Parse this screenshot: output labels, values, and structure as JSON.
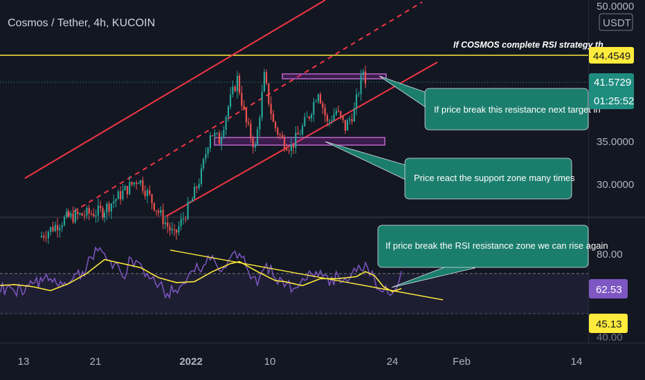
{
  "chart_title": "Cosmos / Tether, 4h, KUCOIN",
  "currency_badge": "USDT",
  "top_note": "If COSMOS complete RSI strategy th",
  "colors": {
    "background": "#131722",
    "up_candle": "#26a69a",
    "down_candle": "#ef5350",
    "channel": "#f23645",
    "horizontal_level": "#ffeb3b",
    "zone": "#9c27b0",
    "rsi": "#7e57c2",
    "rsi_ma": "#ffeb3b",
    "callout": "#1b7e6d"
  },
  "annotations": {
    "resistance_callout": "If price break this resistance next target in",
    "support_callout": "Price react the support zone many times",
    "rsi_callout": "If price break the RSI resistance zone we can rise again"
  },
  "price_badges": {
    "level": "44.4549",
    "last_price": "41.5729",
    "countdown": "01:25:52"
  },
  "rsi_badges": {
    "rsi_value": "62.53",
    "rsi_ma_value": "45.13"
  },
  "chart_data": [
    {
      "type": "candlestick",
      "title": "Cosmos / Tether, 4h, KUCOIN",
      "y_axis_ticks": [
        "50.0000",
        "35.0000",
        "30.0000"
      ],
      "x_axis_ticks": [
        "13",
        "21",
        "2022",
        "10",
        "24",
        "Feb",
        "14"
      ],
      "ylim": [
        23.9,
        51
      ],
      "horizontal_level": 44.4549,
      "last_price": 41.5729,
      "resistance_zone": [
        41.6,
        42.5
      ],
      "support_zone": [
        34.7,
        35.7
      ],
      "close_path": [
        {
          "x": "Dec 15",
          "close": 24.5
        },
        {
          "x": "Dec 18",
          "close": 26.8
        },
        {
          "x": "Dec 22",
          "close": 27.6
        },
        {
          "x": "Dec 26",
          "close": 31.5
        },
        {
          "x": "Dec 28",
          "close": 27.9
        },
        {
          "x": "Dec 30",
          "close": 24.6
        },
        {
          "x": "Jan 1",
          "close": 29.0
        },
        {
          "x": "Jan 2",
          "close": 32.0
        },
        {
          "x": "Jan 3",
          "close": 37.0
        },
        {
          "x": "Jan 4",
          "close": 36.0
        },
        {
          "x": "Jan 5",
          "close": 40.0
        },
        {
          "x": "Jan 6",
          "close": 43.3
        },
        {
          "x": "Jan 7",
          "close": 38.0
        },
        {
          "x": "Jan 8",
          "close": 35.0
        },
        {
          "x": "Jan 9",
          "close": 43.5
        },
        {
          "x": "Jan 10",
          "close": 38.0
        },
        {
          "x": "Jan 11",
          "close": 36.0
        },
        {
          "x": "Jan 12",
          "close": 35.2
        },
        {
          "x": "Jan 13",
          "close": 37.0
        },
        {
          "x": "Jan 14",
          "close": 39.0
        },
        {
          "x": "Jan 15",
          "close": 42.0
        },
        {
          "x": "Jan 16",
          "close": 38.0
        },
        {
          "x": "Jan 17",
          "close": 39.5
        },
        {
          "x": "Jan 18",
          "close": 37.5
        },
        {
          "x": "Jan 19",
          "close": 39.5
        },
        {
          "x": "Jan 20",
          "close": 44.3
        },
        {
          "x": "Jan 21",
          "close": 40.0
        },
        {
          "x": "Jan 22",
          "close": 36.0
        },
        {
          "x": "Jan 23",
          "close": 37.5
        },
        {
          "x": "Jan 24",
          "close": 41.57
        }
      ],
      "channel": {
        "lower": [
          {
            "x": "Jan 1",
            "y": 24.5
          },
          {
            "x": "Feb 2",
            "y": 44.4
          }
        ],
        "upper": [
          {
            "x": "Dec 10",
            "y": 31.5
          },
          {
            "x": "Jan 20",
            "y": 52.0
          }
        ],
        "mid_dashed": [
          {
            "x": "Dec 17",
            "y": 24.5
          },
          {
            "x": "Jan 27",
            "y": 51.0
          }
        ]
      }
    },
    {
      "type": "line",
      "title": "RSI",
      "y_axis_ticks": [
        "80.00",
        "40.00"
      ],
      "ylim": [
        38,
        96
      ],
      "bands": [
        70,
        50
      ],
      "series": [
        {
          "name": "",
          "values": [
            {
              "x": "Dec 10",
              "y": 46
            },
            {
              "x": "Dec 12",
              "y": 42
            },
            {
              "x": "Dec 14",
              "y": 50
            },
            {
              "x": "Dec 16",
              "y": 55
            },
            {
              "x": "Dec 18",
              "y": 50
            },
            {
              "x": "Dec 20",
              "y": 66
            },
            {
              "x": "Dec 21",
              "y": 86
            },
            {
              "x": "Dec 22",
              "y": 80
            },
            {
              "x": "Dec 24",
              "y": 57
            },
            {
              "x": "Dec 25",
              "y": 75
            },
            {
              "x": "Dec 26",
              "y": 70
            },
            {
              "x": "Dec 27",
              "y": 55
            },
            {
              "x": "Dec 29",
              "y": 40
            },
            {
              "x": "Dec 31",
              "y": 50
            },
            {
              "x": "Jan 1",
              "y": 62
            },
            {
              "x": "Jan 2",
              "y": 68
            },
            {
              "x": "Jan 3",
              "y": 78
            },
            {
              "x": "Jan 4",
              "y": 62
            },
            {
              "x": "Jan 5",
              "y": 76
            },
            {
              "x": "Jan 6",
              "y": 80
            },
            {
              "x": "Jan 7",
              "y": 62
            },
            {
              "x": "Jan 8",
              "y": 48
            },
            {
              "x": "Jan 9",
              "y": 70
            },
            {
              "x": "Jan 10",
              "y": 55
            },
            {
              "x": "Jan 11",
              "y": 47
            },
            {
              "x": "Jan 12",
              "y": 45
            },
            {
              "x": "Jan 13",
              "y": 55
            },
            {
              "x": "Jan 14",
              "y": 60
            },
            {
              "x": "Jan 15",
              "y": 63
            },
            {
              "x": "Jan 16",
              "y": 48
            },
            {
              "x": "Jan 17",
              "y": 58
            },
            {
              "x": "Jan 18",
              "y": 52
            },
            {
              "x": "Jan 19",
              "y": 62
            },
            {
              "x": "Jan 20",
              "y": 71
            },
            {
              "x": "Jan 21",
              "y": 55
            },
            {
              "x": "Jan 22",
              "y": 42
            },
            {
              "x": "Jan 23",
              "y": 40
            },
            {
              "x": "Jan 24",
              "y": 62.53
            }
          ]
        },
        {
          "name": "",
          "values": [
            {
              "x": "Dec 10",
              "y": 48
            },
            {
              "x": "Dec 12",
              "y": 49
            },
            {
              "x": "Dec 14",
              "y": 47
            },
            {
              "x": "Dec 16",
              "y": 43
            },
            {
              "x": "Dec 18",
              "y": 50
            },
            {
              "x": "Dec 20",
              "y": 60
            },
            {
              "x": "Dec 22",
              "y": 74
            },
            {
              "x": "Dec 24",
              "y": 70
            },
            {
              "x": "Dec 26",
              "y": 66
            },
            {
              "x": "Dec 28",
              "y": 56
            },
            {
              "x": "Dec 30",
              "y": 51
            },
            {
              "x": "Jan 1",
              "y": 52
            },
            {
              "x": "Jan 3",
              "y": 62
            },
            {
              "x": "Jan 5",
              "y": 70
            },
            {
              "x": "Jan 6",
              "y": 72
            },
            {
              "x": "Jan 8",
              "y": 62
            },
            {
              "x": "Jan 10",
              "y": 53
            },
            {
              "x": "Jan 11",
              "y": 52
            },
            {
              "x": "Jan 13",
              "y": 48
            },
            {
              "x": "Jan 15",
              "y": 55
            },
            {
              "x": "Jan 17",
              "y": 55
            },
            {
              "x": "Jan 19",
              "y": 57
            },
            {
              "x": "Jan 20",
              "y": 62
            },
            {
              "x": "Jan 21",
              "y": 58
            },
            {
              "x": "Jan 22",
              "y": 47
            },
            {
              "x": "Jan 23",
              "y": 42
            },
            {
              "x": "Jan 24",
              "y": 45.13
            }
          ]
        }
      ],
      "trendline": [
        {
          "x": "Jan 5",
          "y": 84
        },
        {
          "x": "Jan 29",
          "y": 63
        }
      ]
    }
  ]
}
